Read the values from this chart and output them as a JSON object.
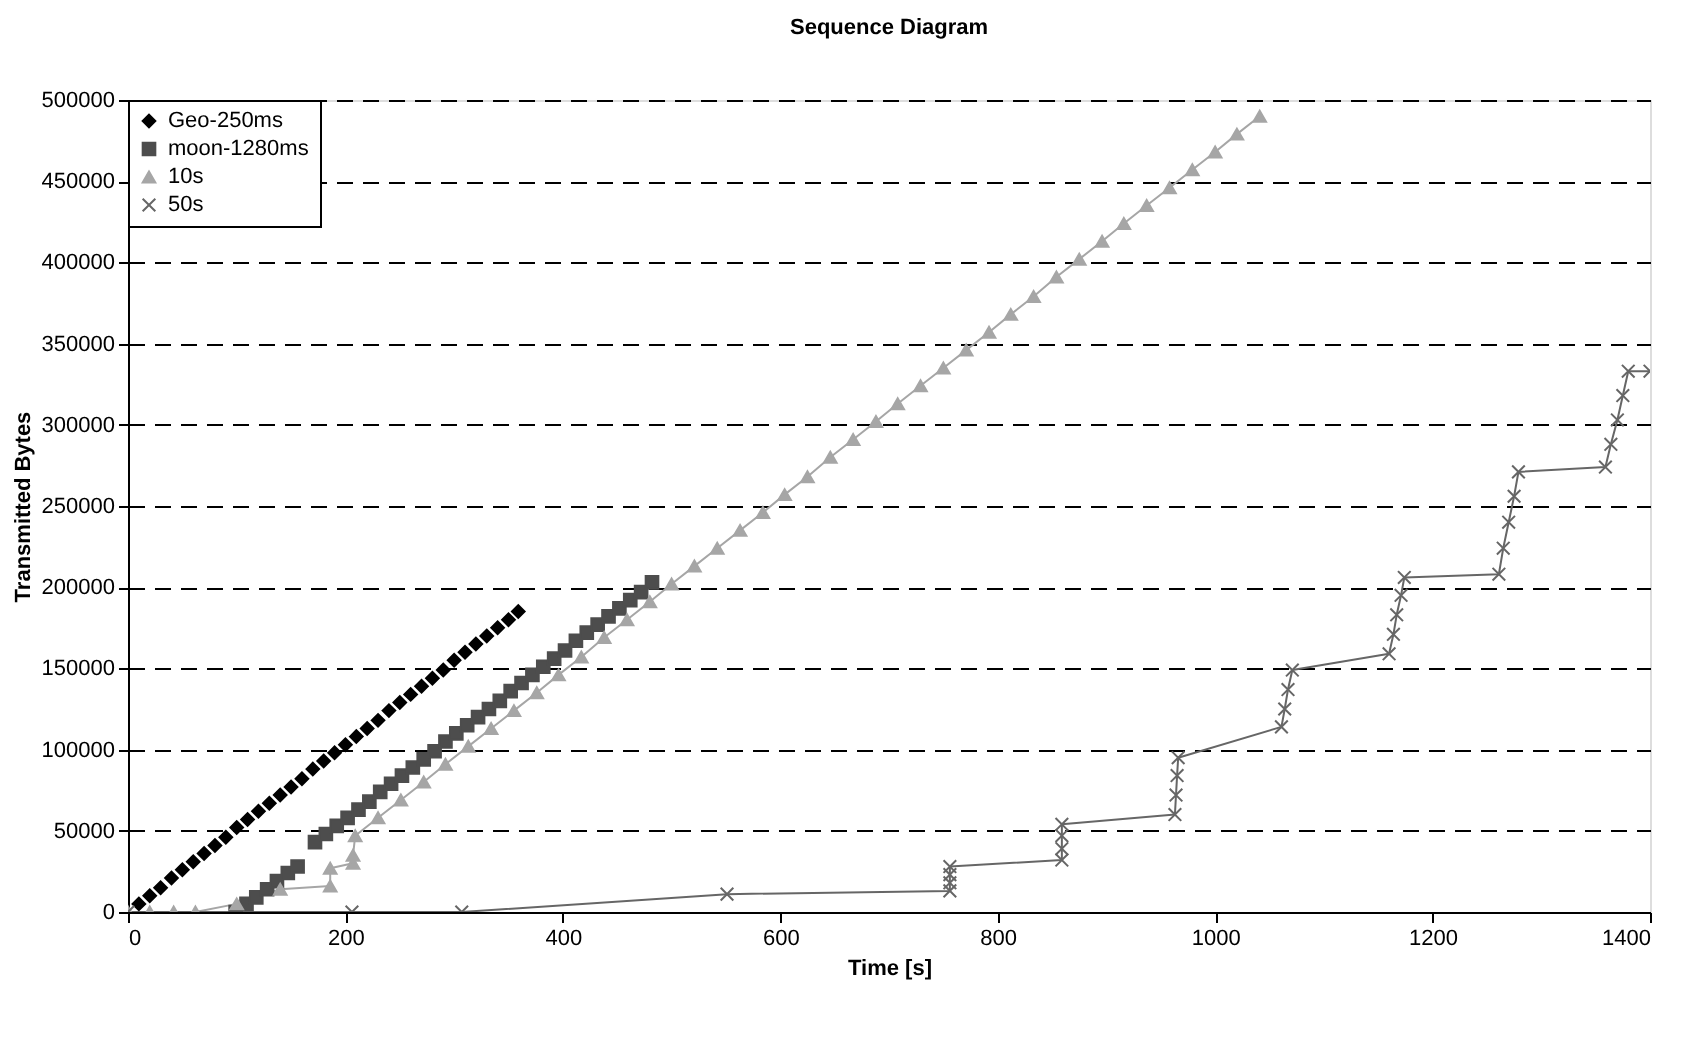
{
  "chart_data": {
    "type": "scatter",
    "title": "Sequence Diagram",
    "xlabel": "Time [s]",
    "ylabel": "Transmitted Bytes",
    "xlim": [
      0,
      1400
    ],
    "xticks": [
      0,
      200,
      400,
      600,
      800,
      1000,
      1200,
      1400
    ],
    "ylim": [
      0,
      500000
    ],
    "yticks": [
      0,
      50000,
      100000,
      150000,
      200000,
      250000,
      300000,
      350000,
      400000,
      450000,
      500000
    ],
    "grid": "y",
    "legend": "top left",
    "series": [
      {
        "name": "Geo-250ms",
        "marker": "diamond",
        "color": "#000000",
        "x": [
          10,
          20,
          30,
          40,
          50,
          60,
          70,
          80,
          90,
          100,
          110,
          120,
          130,
          140,
          150,
          160,
          170,
          180,
          190,
          200,
          210,
          220,
          230,
          240,
          250,
          260,
          270,
          280,
          290,
          300,
          310,
          320,
          330,
          340,
          350,
          359
        ],
        "values": [
          5000,
          10000,
          15000,
          21000,
          26000,
          31000,
          36000,
          41000,
          46000,
          52000,
          57000,
          62000,
          67000,
          72000,
          77000,
          82000,
          88000,
          93000,
          98000,
          103000,
          108000,
          113000,
          118000,
          124000,
          129000,
          134000,
          139000,
          144000,
          149000,
          155000,
          160000,
          165000,
          170000,
          175000,
          180000,
          185000
        ]
      },
      {
        "name": "moon-1280ms",
        "marker": "square",
        "color": "#4d4d4d",
        "x": [
          99,
          109,
          118,
          128,
          137,
          147,
          156,
          172,
          182,
          192,
          202,
          212,
          222,
          232,
          242,
          252,
          262,
          272,
          282,
          292,
          302,
          312,
          322,
          332,
          342,
          352,
          362,
          372,
          382,
          392,
          402,
          412,
          422,
          432,
          442,
          452,
          462,
          472,
          482
        ],
        "values": [
          0,
          5000,
          9000,
          14000,
          19000,
          24000,
          28000,
          43000,
          48000,
          53000,
          58000,
          63000,
          68000,
          74000,
          79000,
          84000,
          89000,
          94000,
          99000,
          105000,
          110000,
          115000,
          120000,
          125000,
          130000,
          136000,
          141000,
          146000,
          151000,
          156000,
          161000,
          167000,
          172000,
          177000,
          182000,
          187000,
          192000,
          197000,
          203000
        ]
      },
      {
        "name": "10s",
        "type": "line",
        "marker": "triangle",
        "color": "#a6a6a6",
        "x": [
          0,
          20,
          42,
          62,
          100,
          140,
          186,
          186,
          207,
          207,
          209,
          230,
          251,
          272,
          292,
          313,
          334,
          355,
          376,
          396,
          417,
          438,
          459,
          480,
          500,
          521,
          542,
          563,
          584,
          604,
          625,
          646,
          667,
          688,
          708,
          729,
          750,
          771,
          792,
          812,
          833,
          854,
          875,
          896,
          916,
          937,
          958,
          979,
          1000,
          1020,
          1041
        ],
        "values": [
          0,
          0,
          0,
          0,
          5000,
          14000,
          16000,
          27000,
          30000,
          35000,
          47000,
          58000,
          69000,
          80000,
          91000,
          102000,
          113000,
          124000,
          135000,
          146000,
          157000,
          169000,
          180000,
          191000,
          202000,
          213000,
          224000,
          235000,
          246000,
          257000,
          268000,
          280000,
          291000,
          302000,
          313000,
          324000,
          335000,
          346000,
          357000,
          368000,
          379000,
          391000,
          402000,
          413000,
          424000,
          435000,
          446000,
          457000,
          468000,
          479000,
          490000
        ]
      },
      {
        "name": "50s",
        "type": "line",
        "marker": "cross",
        "color": "#666666",
        "x": [
          0,
          206,
          307,
          551,
          756,
          756,
          756,
          756,
          859,
          859,
          859,
          859,
          963,
          964,
          965,
          966,
          1061,
          1064,
          1067,
          1071,
          1160,
          1164,
          1167,
          1171,
          1174,
          1261,
          1265,
          1270,
          1275,
          1279,
          1359,
          1364,
          1370,
          1375,
          1380,
          1400
        ],
        "values": [
          0,
          0,
          0,
          11000,
          13000,
          18000,
          23000,
          28000,
          32000,
          39000,
          47000,
          54000,
          60000,
          72000,
          84000,
          95000,
          114000,
          125000,
          137000,
          149000,
          159000,
          171000,
          183000,
          195000,
          206000,
          208000,
          224000,
          240000,
          256000,
          271000,
          274000,
          288000,
          303000,
          318000,
          333000,
          333000
        ]
      }
    ]
  }
}
